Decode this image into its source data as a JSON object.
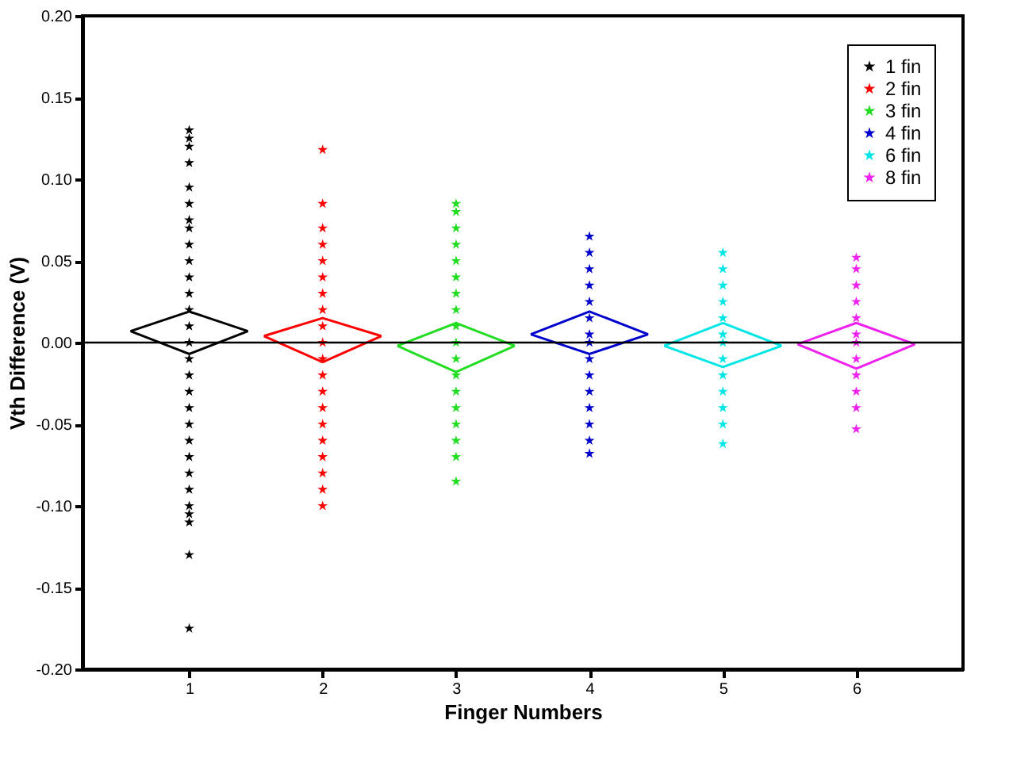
{
  "chart_data": {
    "type": "scatter",
    "xlabel": "Finger Numbers",
    "ylabel": "Vth Difference (V)",
    "xlim": [
      0.2,
      6.8
    ],
    "xticks": [
      1,
      2,
      3,
      4,
      5,
      6
    ],
    "ylim": [
      -0.2,
      0.2
    ],
    "yticks": [
      {
        "value": -0.2,
        "label": "-0.20"
      },
      {
        "value": -0.15,
        "label": "-0.15"
      },
      {
        "value": -0.1,
        "label": "-0.10"
      },
      {
        "value": -0.05,
        "label": "-0.05"
      },
      {
        "value": 0,
        "label": "0.00"
      },
      {
        "value": 0.05,
        "label": "0.05"
      },
      {
        "value": 0.1,
        "label": "0.10"
      },
      {
        "value": 0.15,
        "label": "0.15"
      },
      {
        "value": 0.2,
        "label": "0.20"
      }
    ],
    "grid": false,
    "legend": "top right",
    "marker": "star",
    "ref_lines": [
      {
        "axis": "y",
        "value": 0,
        "color": "#000000"
      }
    ],
    "series": [
      {
        "name": "1 fin",
        "color": "#000000",
        "x": [
          1,
          1,
          1,
          1,
          1,
          1,
          1,
          1,
          1,
          1,
          1,
          1,
          1,
          1,
          1,
          1,
          1,
          1,
          1,
          1,
          1,
          1,
          1,
          1,
          1,
          1,
          1,
          1,
          1
        ],
        "values": [
          0.13,
          0.125,
          0.12,
          0.11,
          0.095,
          0.085,
          0.075,
          0.07,
          0.06,
          0.05,
          0.04,
          0.03,
          0.02,
          0.01,
          0,
          -0.01,
          -0.02,
          -0.03,
          -0.04,
          -0.05,
          -0.06,
          -0.07,
          -0.08,
          -0.09,
          -0.1,
          -0.105,
          -0.11,
          -0.13,
          -0.175
        ]
      },
      {
        "name": "2 fin",
        "color": "#ff0000",
        "x": [
          2,
          2,
          2,
          2,
          2,
          2,
          2,
          2,
          2,
          2,
          2,
          2,
          2,
          2,
          2,
          2,
          2,
          2,
          2,
          2
        ],
        "values": [
          0.118,
          0.085,
          0.07,
          0.06,
          0.05,
          0.04,
          0.03,
          0.02,
          0.01,
          0,
          -0.01,
          -0.02,
          -0.03,
          -0.04,
          -0.05,
          -0.06,
          -0.07,
          -0.08,
          -0.09,
          -0.1
        ]
      },
      {
        "name": "3 fin",
        "color": "#22dd22",
        "x": [
          3,
          3,
          3,
          3,
          3,
          3,
          3,
          3,
          3,
          3,
          3,
          3,
          3,
          3,
          3,
          3,
          3,
          3
        ],
        "values": [
          0.085,
          0.08,
          0.07,
          0.06,
          0.05,
          0.04,
          0.03,
          0.02,
          0.01,
          0,
          -0.01,
          -0.02,
          -0.03,
          -0.04,
          -0.05,
          -0.06,
          -0.07,
          -0.085
        ]
      },
      {
        "name": "4 fin",
        "color": "#0000cc",
        "x": [
          4,
          4,
          4,
          4,
          4,
          4,
          4,
          4,
          4,
          4,
          4,
          4,
          4,
          4,
          4
        ],
        "values": [
          0.065,
          0.055,
          0.045,
          0.035,
          0.025,
          0.015,
          0.005,
          0,
          -0.01,
          -0.02,
          -0.03,
          -0.04,
          -0.05,
          -0.06,
          -0.068
        ]
      },
      {
        "name": "6 fin",
        "color": "#00e5e5",
        "x": [
          5,
          5,
          5,
          5,
          5,
          5,
          5,
          5,
          5,
          5,
          5,
          5,
          5
        ],
        "values": [
          0.055,
          0.045,
          0.035,
          0.025,
          0.015,
          0.005,
          0,
          -0.01,
          -0.02,
          -0.03,
          -0.04,
          -0.05,
          -0.062
        ]
      },
      {
        "name": "8 fin",
        "color": "#ee22ee",
        "x": [
          6,
          6,
          6,
          6,
          6,
          6,
          6,
          6,
          6,
          6,
          6,
          6
        ],
        "values": [
          0.052,
          0.045,
          0.035,
          0.025,
          0.015,
          0.005,
          0,
          -0.01,
          -0.02,
          -0.03,
          -0.04,
          -0.053
        ]
      },
      {
        "type": "line",
        "marker": "none",
        "color": "#000000",
        "x": [
          0.56,
          1,
          1.44
        ],
        "values": [
          0.007,
          0.019,
          0.007
        ]
      },
      {
        "type": "line",
        "marker": "none",
        "color": "#000000",
        "x": [
          0.56,
          1,
          1.44
        ],
        "values": [
          0.007,
          -0.007,
          0.007
        ]
      },
      {
        "type": "line",
        "marker": "none",
        "color": "#ff0000",
        "x": [
          1.56,
          2,
          2.44
        ],
        "values": [
          0.004,
          0.015,
          0.004
        ]
      },
      {
        "type": "line",
        "marker": "none",
        "color": "#ff0000",
        "x": [
          1.56,
          2,
          2.44
        ],
        "values": [
          0.004,
          -0.012,
          0.004
        ]
      },
      {
        "type": "line",
        "marker": "none",
        "color": "#22dd22",
        "x": [
          2.56,
          3,
          3.44
        ],
        "values": [
          -0.002,
          0.012,
          -0.002
        ]
      },
      {
        "type": "line",
        "marker": "none",
        "color": "#22dd22",
        "x": [
          2.56,
          3,
          3.44
        ],
        "values": [
          -0.002,
          -0.018,
          -0.002
        ]
      },
      {
        "type": "line",
        "marker": "none",
        "color": "#0000cc",
        "x": [
          3.56,
          4,
          4.44
        ],
        "values": [
          0.005,
          0.019,
          0.005
        ]
      },
      {
        "type": "line",
        "marker": "none",
        "color": "#0000cc",
        "x": [
          3.56,
          4,
          4.44
        ],
        "values": [
          0.005,
          -0.007,
          0.005
        ]
      },
      {
        "type": "line",
        "marker": "none",
        "color": "#00e5e5",
        "x": [
          4.56,
          5,
          5.44
        ],
        "values": [
          -0.002,
          0.012,
          -0.002
        ]
      },
      {
        "type": "line",
        "marker": "none",
        "color": "#00e5e5",
        "x": [
          4.56,
          5,
          5.44
        ],
        "values": [
          -0.002,
          -0.015,
          -0.002
        ]
      },
      {
        "type": "line",
        "marker": "none",
        "color": "#ee22ee",
        "x": [
          5.56,
          6,
          6.44
        ],
        "values": [
          -0.001,
          0.012,
          -0.001
        ]
      },
      {
        "type": "line",
        "marker": "none",
        "color": "#ee22ee",
        "x": [
          5.56,
          6,
          6.44
        ],
        "values": [
          -0.001,
          -0.016,
          -0.001
        ]
      }
    ]
  }
}
